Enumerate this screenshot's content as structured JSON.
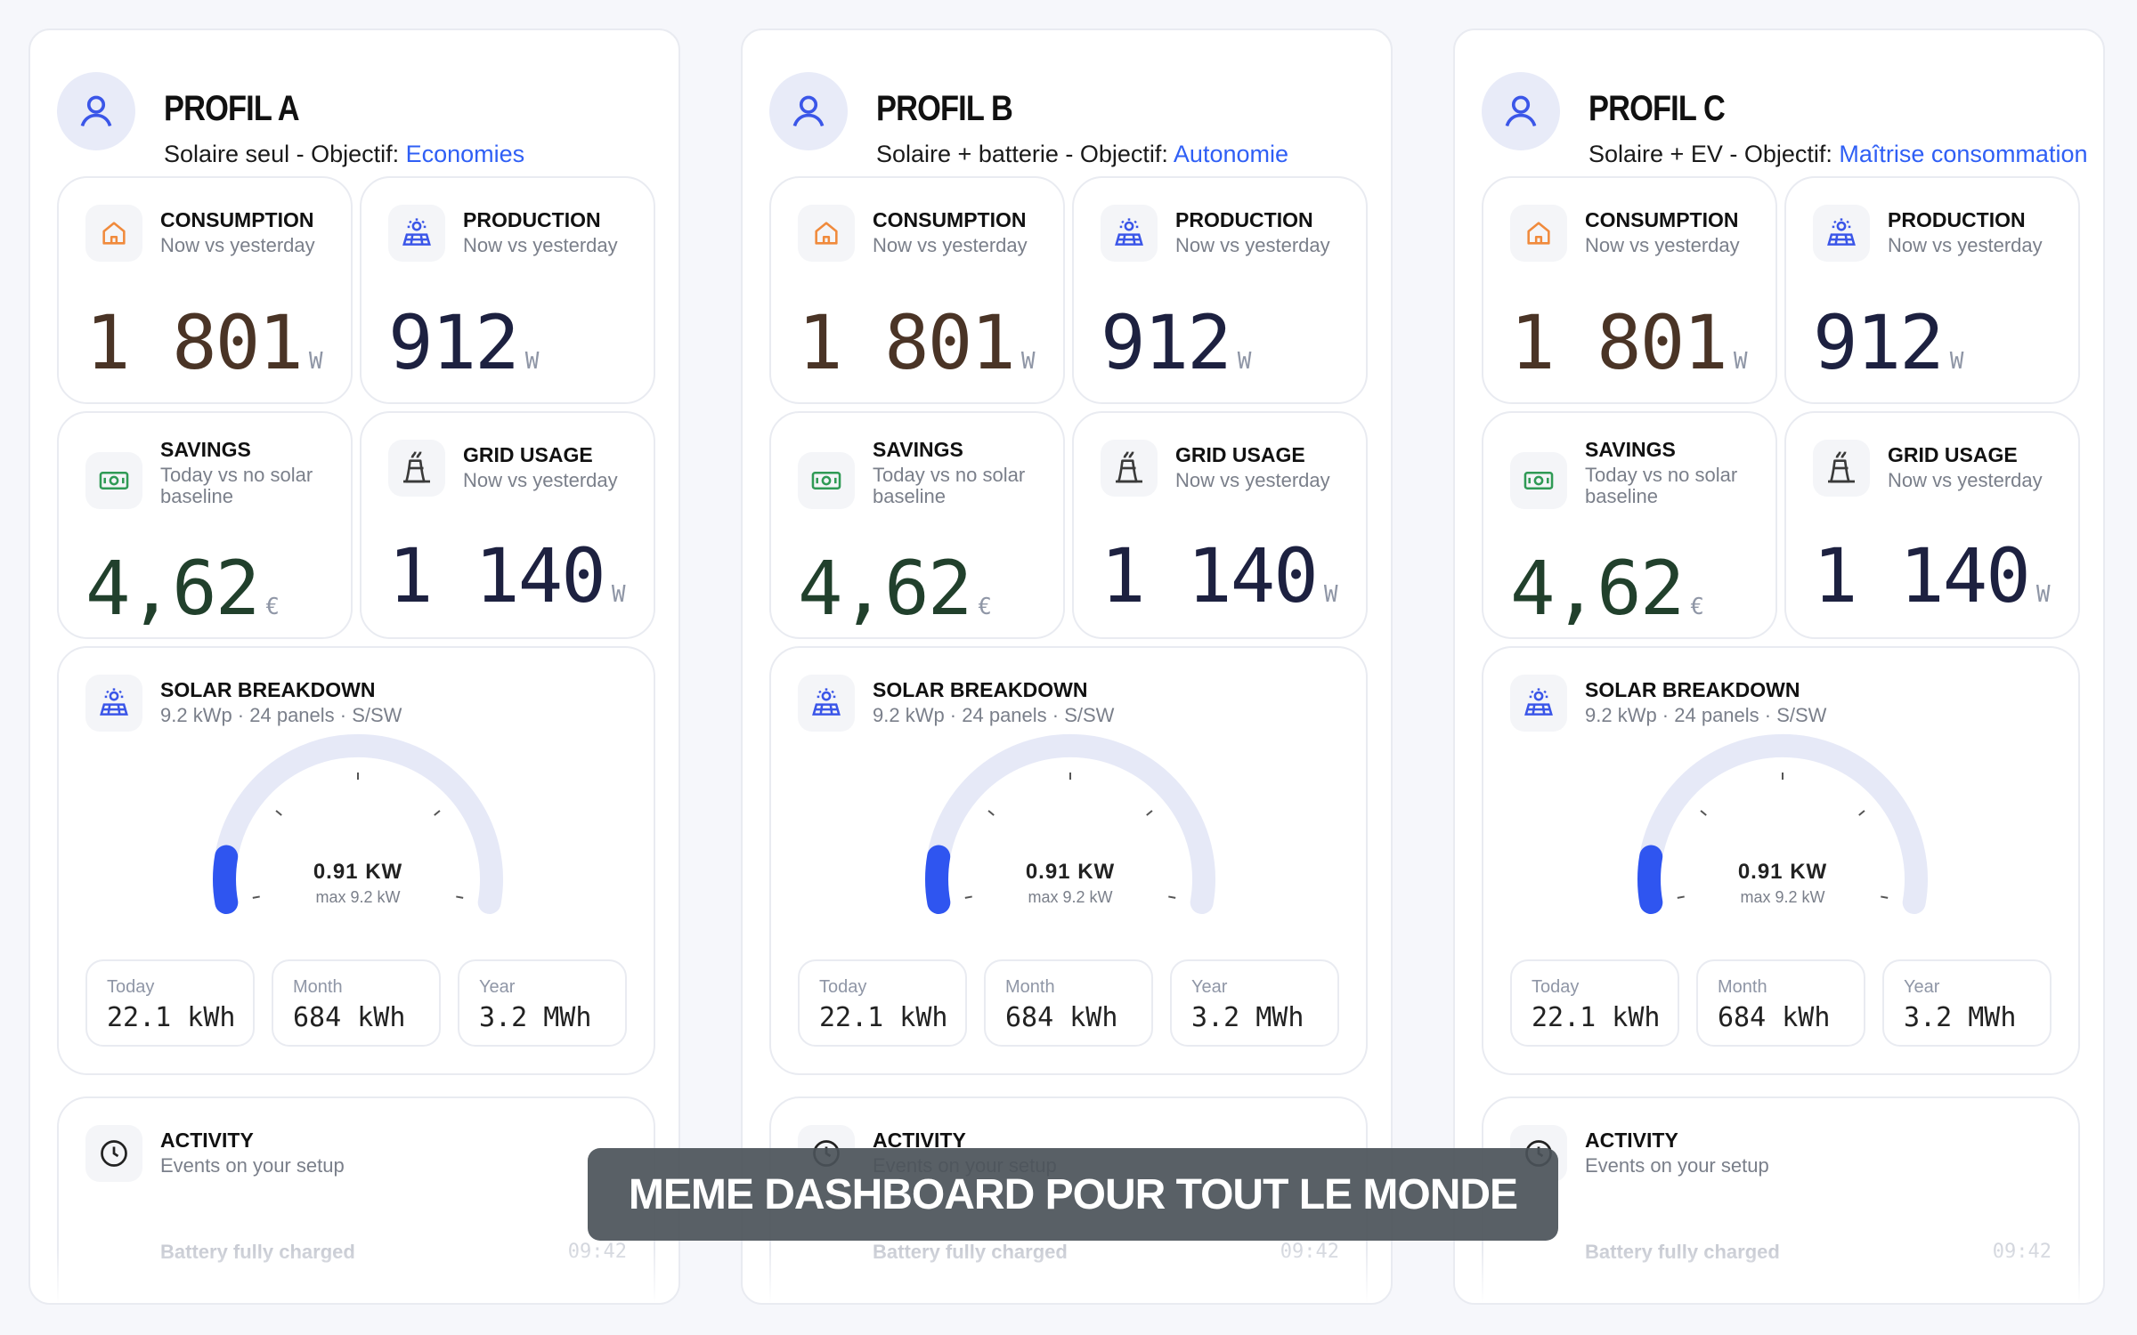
{
  "profiles": [
    {
      "title": "PROFIL A",
      "subtitle_prefix": "Solaire seul - Objectif: ",
      "goal": "Economies"
    },
    {
      "title": "PROFIL B",
      "subtitle_prefix": "Solaire + batterie - Objectif: ",
      "goal": "Autonomie"
    },
    {
      "title": "PROFIL C",
      "subtitle_prefix": "Solaire + EV - Objectif: ",
      "goal": "Maîtrise consommation"
    }
  ],
  "consumption": {
    "title": "CONSUMPTION",
    "subtitle": "Now vs yesterday",
    "value": "1 801",
    "unit": "W",
    "icon": "house-icon",
    "color": "#4a3426",
    "icon_color": "#f08a3c"
  },
  "production": {
    "title": "PRODUCTION",
    "subtitle": "Now vs yesterday",
    "value": "912",
    "unit": "W",
    "icon": "solar-panel-icon",
    "color": "#1d2140",
    "icon_color": "#3b56e8"
  },
  "savings": {
    "title": "SAVINGS",
    "subtitle": "Today vs no solar baseline",
    "value": "4,62",
    "unit": "€",
    "icon": "banknote-icon",
    "color": "#21402c",
    "icon_color": "#2f9a55"
  },
  "grid": {
    "title": "GRID USAGE",
    "subtitle": "Now vs yesterday",
    "value": "1 140",
    "unit": "W",
    "icon": "power-plant-icon",
    "color": "#1d2140",
    "icon_color": "#3a3a3a"
  },
  "solar": {
    "title": "SOLAR BREAKDOWN",
    "subtitle": "9.2 kWp · 24 panels · S/SW",
    "icon": "solar-panel-icon",
    "gauge_value": "0.91 KW",
    "gauge_max": "max 9.2 kW",
    "gauge_fraction": 0.099,
    "stats": [
      {
        "label": "Today",
        "value": "22.1 kWh"
      },
      {
        "label": "Month",
        "value": "684 kWh"
      },
      {
        "label": "Year",
        "value": "3.2 MWh"
      }
    ]
  },
  "activity": {
    "title": "ACTIVITY",
    "subtitle": "Events on your setup",
    "icon": "clock-icon",
    "event": "Battery fully charged",
    "time": "09:42"
  },
  "banner": "MEME DASHBOARD POUR TOUT LE MONDE",
  "colors": {
    "accent": "#2f5ff5",
    "gauge_track": "#e6e9f7",
    "gauge_fill": "#2f55f0"
  }
}
